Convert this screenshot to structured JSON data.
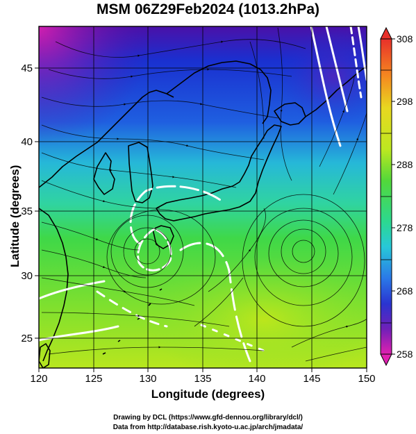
{
  "title": "MSM 06Z29Feb2024 (1013.2hPa)",
  "x_axis": {
    "label": "Longitude (degrees)",
    "ticks": [
      "120",
      "125",
      "130",
      "135",
      "140",
      "145",
      "150"
    ]
  },
  "y_axis": {
    "label": "Latitude  (degrees)",
    "ticks": [
      "25",
      "30",
      "35",
      "40",
      "45"
    ]
  },
  "colorbar": {
    "ticks": [
      "308",
      "298",
      "288",
      "278",
      "268",
      "258"
    ],
    "range": [
      258,
      308
    ]
  },
  "credits": {
    "line1": "Drawing by DCL (https://www.gfd-dennou.org/library/dcl/)",
    "line2": "Data from http://database.rish.kyoto-u.ac.jp/arch/jmadata/"
  },
  "map": {
    "extent": {
      "lon": [
        120,
        150
      ],
      "lat": [
        22.5,
        47.5
      ]
    },
    "grid": true,
    "field": "temperature (K)",
    "overlay": "streamlines",
    "vortex_centers": [
      [
        143.5,
        31.5
      ],
      [
        129.5,
        32.5
      ]
    ]
  }
}
